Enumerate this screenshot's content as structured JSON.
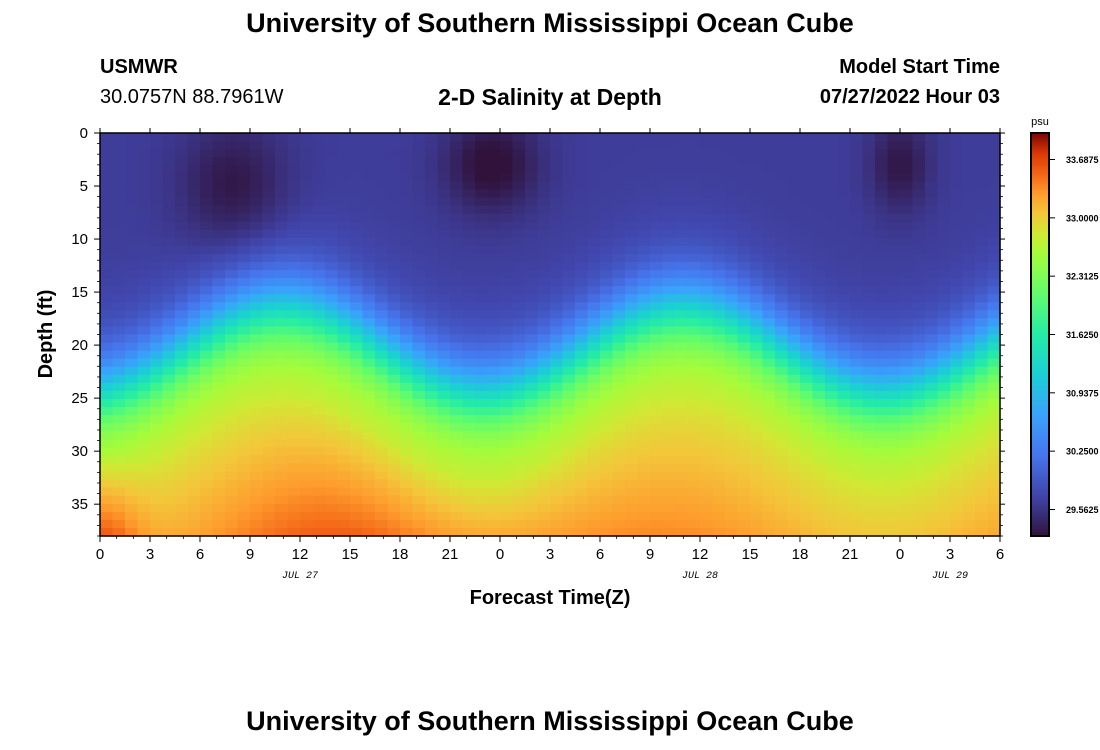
{
  "header": {
    "title": "University of Southern Mississippi Ocean Cube",
    "station": "USMWR",
    "coords": "30.0757N  88.7961W",
    "subtitle": "2-D Salinity at Depth",
    "model_start_label": "Model Start Time",
    "model_start_value": "07/27/2022 Hour 03"
  },
  "footer": {
    "title": "University of Southern Mississippi Ocean Cube"
  },
  "chart_data": {
    "type": "heatmap",
    "title": "2-D Salinity at Depth",
    "xlabel": "Forecast Time(Z)",
    "ylabel": "Depth (ft)",
    "x_range_hours": [
      0,
      54
    ],
    "x_tick_labels": [
      "0",
      "3",
      "6",
      "9",
      "12",
      "15",
      "18",
      "21",
      "0",
      "3",
      "6",
      "9",
      "12",
      "15",
      "18",
      "21",
      "0",
      "3",
      "6"
    ],
    "date_labels": [
      {
        "text": "JUL 27",
        "hour": 12
      },
      {
        "text": "JUL 28",
        "hour": 36
      },
      {
        "text": "JUL 29",
        "hour": 51
      }
    ],
    "y_range_ft": [
      0,
      38
    ],
    "y_ticks": [
      0,
      5,
      10,
      15,
      20,
      25,
      30,
      35
    ],
    "colorbar": {
      "unit": "psu",
      "min": 29.25,
      "max": 34.0,
      "tick_labels": [
        "33.6875",
        "33.0000",
        "32.3125",
        "31.6250",
        "30.9375",
        "30.2500",
        "29.5625"
      ]
    },
    "salinity_profile_description_points": [
      {
        "hour": 0,
        "depth_ft": 37,
        "psu": 34.0
      },
      {
        "hour": 8,
        "depth_ft": 5,
        "psu": 29.3
      },
      {
        "hour": 24,
        "depth_ft": 3,
        "psu": 29.25
      },
      {
        "hour": 48,
        "depth_ft": 3,
        "psu": 29.3
      },
      {
        "hour": 18,
        "depth_ft": 35,
        "psu": 33.3
      },
      {
        "hour": 27,
        "depth_ft": 20,
        "psu": 30.6
      }
    ]
  }
}
